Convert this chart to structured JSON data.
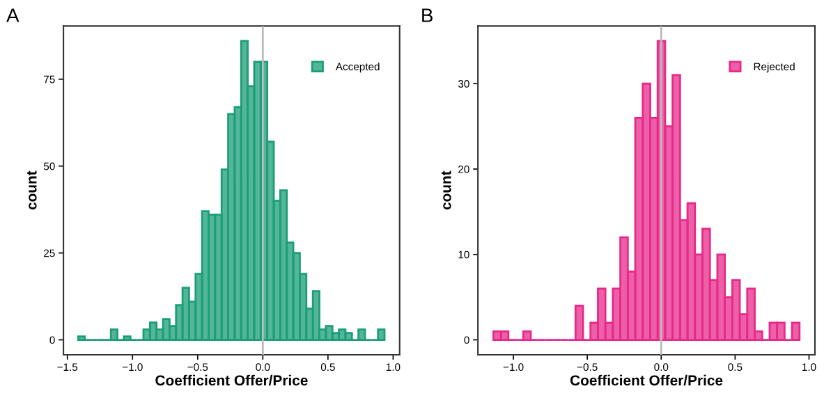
{
  "chart_data": [
    {
      "type": "histogram",
      "title": "A",
      "xlabel": "Coefficient Offer/Price",
      "ylabel": "count",
      "bins": [
        -1.416,
        -1.366,
        -1.316,
        -1.266,
        -1.216,
        -1.166,
        -1.116,
        -1.066,
        -1.016,
        -0.966,
        -0.916,
        -0.866,
        -0.816,
        -0.766,
        -0.716,
        -0.666,
        -0.616,
        -0.566,
        -0.516,
        -0.466,
        -0.416,
        -0.366,
        -0.316,
        -0.266,
        -0.216,
        -0.166,
        -0.116,
        -0.066,
        -0.016,
        0.034,
        0.084,
        0.134,
        0.184,
        0.234,
        0.284,
        0.334,
        0.384,
        0.434,
        0.484,
        0.534,
        0.584,
        0.634,
        0.684,
        0.734,
        0.784,
        0.834,
        0.884,
        0.934
      ],
      "series": [
        {
          "name": "Accepted",
          "color": "#1b9e77",
          "values": [
            1,
            0,
            0,
            0,
            0,
            3,
            0,
            1,
            0,
            0,
            3,
            5,
            3,
            6,
            4,
            10,
            15,
            11,
            19,
            37,
            36,
            36,
            49,
            65,
            67,
            86,
            73,
            80,
            80,
            57,
            40,
            43,
            28,
            25,
            19,
            9,
            14,
            3,
            4,
            2,
            3,
            2,
            0,
            3,
            0,
            0,
            3
          ]
        }
      ],
      "xlim": [
        -1.53,
        1.05
      ],
      "ylim": [
        -4.3,
        90.3
      ],
      "xticks": [
        {
          "value": -1.5,
          "label": "−1.5"
        },
        {
          "value": -1.0,
          "label": "−1.0"
        },
        {
          "value": -0.5,
          "label": "−0.5"
        },
        {
          "value": 0.0,
          "label": "0.0"
        },
        {
          "value": 0.5,
          "label": "0.5"
        },
        {
          "value": 1.0,
          "label": "1.0"
        }
      ],
      "yticks": [
        0,
        25,
        50,
        75
      ],
      "ref_lines": [
        {
          "axis": "x",
          "value": 0,
          "color": "#bbbbbb"
        }
      ],
      "legend": "top right",
      "grid": false
    },
    {
      "type": "histogram",
      "title": "B",
      "xlabel": "Coefficient Offer/Price",
      "ylabel": "count",
      "bins": [
        -1.135,
        -1.0845,
        -1.034,
        -0.9835,
        -0.933,
        -0.8825,
        -0.832,
        -0.7815,
        -0.731,
        -0.6805,
        -0.63,
        -0.5795,
        -0.529,
        -0.4785,
        -0.428,
        -0.3775,
        -0.327,
        -0.2765,
        -0.226,
        -0.1755,
        -0.125,
        -0.0745,
        -0.024,
        0.0265,
        0.077,
        0.1275,
        0.178,
        0.2285,
        0.279,
        0.3295,
        0.38,
        0.4305,
        0.481,
        0.5315,
        0.582,
        0.6325,
        0.683,
        0.7335,
        0.784,
        0.8345,
        0.885,
        0.9355
      ],
      "series": [
        {
          "name": "Rejected",
          "color": "#e7298a",
          "values": [
            1,
            1,
            0,
            0,
            1,
            0,
            0,
            0,
            0,
            0,
            0,
            4,
            0,
            2,
            6,
            2,
            6,
            12,
            8,
            26,
            30,
            26,
            35,
            25,
            31,
            14,
            16,
            10,
            13,
            7,
            10,
            5,
            7,
            3,
            6,
            1,
            0,
            2,
            2,
            0,
            2
          ]
        }
      ],
      "xlim": [
        -1.24,
        1.04
      ],
      "ylim": [
        -1.75,
        36.75
      ],
      "xticks": [
        {
          "value": -1.0,
          "label": "−1.0"
        },
        {
          "value": -0.5,
          "label": "−0.5"
        },
        {
          "value": 0.0,
          "label": "0.0"
        },
        {
          "value": 0.5,
          "label": "0.5"
        },
        {
          "value": 1.0,
          "label": "1.0"
        }
      ],
      "yticks": [
        0,
        10,
        20,
        30
      ],
      "ref_lines": [
        {
          "axis": "x",
          "value": 0,
          "color": "#bbbbbb"
        }
      ],
      "legend": "top right",
      "grid": false
    }
  ]
}
